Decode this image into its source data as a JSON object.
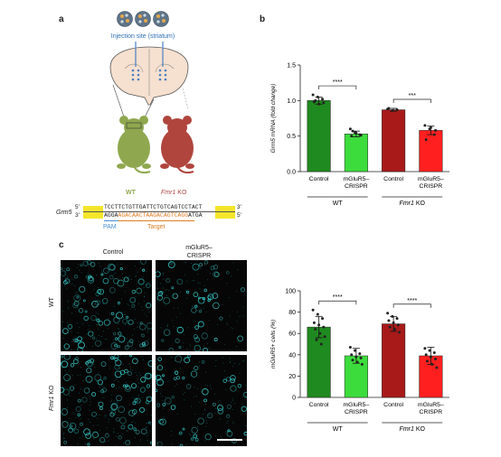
{
  "panel_a": {
    "letter": "a",
    "injection_label": "Injection site (striatum)",
    "wt_label": "WT",
    "ko_label_gene": "Fmr1",
    "ko_label_suffix": " KO",
    "gene_label": "Grm5",
    "strand_top_5": "5′",
    "strand_top_3": "3′",
    "strand_bot_3": "3′",
    "strand_bot_5": "5′",
    "seq_top": "TCCTTCTGTTGATTCTGTCAGTCCTACT",
    "seq_bottom_pam": "AGGA",
    "seq_bottom_target": "AGACAACTAAGACAGTCAGG",
    "seq_bottom_tail": "ATGA",
    "pam_label": "PAM",
    "target_label": "Target",
    "colors": {
      "wt_mouse": "#8fa84f",
      "ko_mouse": "#b0453d",
      "brain": "#f6e0cf",
      "pam": "#4a8fd6",
      "target": "#e07b20",
      "highlight": "#f5e52a"
    }
  },
  "panel_b": {
    "letter": "b",
    "groups": [
      "WT",
      "Fmr1 KO"
    ],
    "group_wt": "WT",
    "group_ko_gene": "Fmr1",
    "group_ko_suffix": " KO",
    "bar_labels": [
      "Control",
      "mGluR5–\nCRISPR",
      "Control",
      "mGluR5–\nCRISPR"
    ],
    "sig": [
      "****",
      "***"
    ]
  },
  "panel_c": {
    "letter": "c",
    "col_control": "Control",
    "col_crispr": "mGluR5–\nCRISPR",
    "row_wt": "WT",
    "row_ko_gene": "Fmr1",
    "row_ko_suffix": " KO",
    "sig": [
      "****",
      "****"
    ],
    "group_wt": "WT",
    "group_ko_gene": "Fmr1",
    "group_ko_suffix": " KO"
  },
  "chart_data": [
    {
      "type": "bar",
      "categories": [
        "Control",
        "mGluR5–CRISPR",
        "Control",
        "mGluR5–CRISPR"
      ],
      "groups": [
        "WT",
        "WT",
        "Fmr1 KO",
        "Fmr1 KO"
      ],
      "values": [
        1.0,
        0.53,
        0.87,
        0.58
      ],
      "errors": [
        0.05,
        0.04,
        0.02,
        0.06
      ],
      "points": [
        [
          1.08,
          1.05,
          1.02,
          0.98,
          0.95,
          0.97,
          1.0
        ],
        [
          0.6,
          0.55,
          0.52,
          0.5,
          0.54,
          0.51,
          0.57
        ],
        [
          0.88,
          0.86,
          0.87,
          0.89
        ],
        [
          0.65,
          0.6,
          0.52,
          0.45,
          0.62,
          0.58
        ]
      ],
      "colors": [
        "#1f8a1f",
        "#3ddc3d",
        "#a81a1a",
        "#ff1f1f"
      ],
      "ylabel": "Grm5 mRNA (fold change)",
      "ylim": [
        0,
        1.5
      ],
      "yticks": [
        0,
        0.5,
        1.0,
        1.5
      ]
    },
    {
      "type": "bar",
      "categories": [
        "Control",
        "mGluR5–CRISPR",
        "Control",
        "mGluR5–CRISPR"
      ],
      "groups": [
        "WT",
        "WT",
        "Fmr1 KO",
        "Fmr1 KO"
      ],
      "values": [
        66,
        39,
        69,
        39
      ],
      "errors": [
        10,
        7,
        7,
        8
      ],
      "points": [
        [
          82,
          78,
          74,
          70,
          68,
          66,
          64,
          60,
          57,
          54,
          50
        ],
        [
          47,
          44,
          41,
          40,
          38,
          37,
          35,
          33,
          31
        ],
        [
          79,
          76,
          74,
          72,
          70,
          68,
          66,
          64,
          61
        ],
        [
          46,
          44,
          42,
          40,
          38,
          36,
          34,
          31,
          28
        ]
      ],
      "colors": [
        "#1f8a1f",
        "#3ddc3d",
        "#a81a1a",
        "#ff1f1f"
      ],
      "ylabel": "mGluR5+ cells (%)",
      "ylim": [
        0,
        100
      ],
      "yticks": [
        0,
        20,
        40,
        60,
        80,
        100
      ]
    }
  ]
}
